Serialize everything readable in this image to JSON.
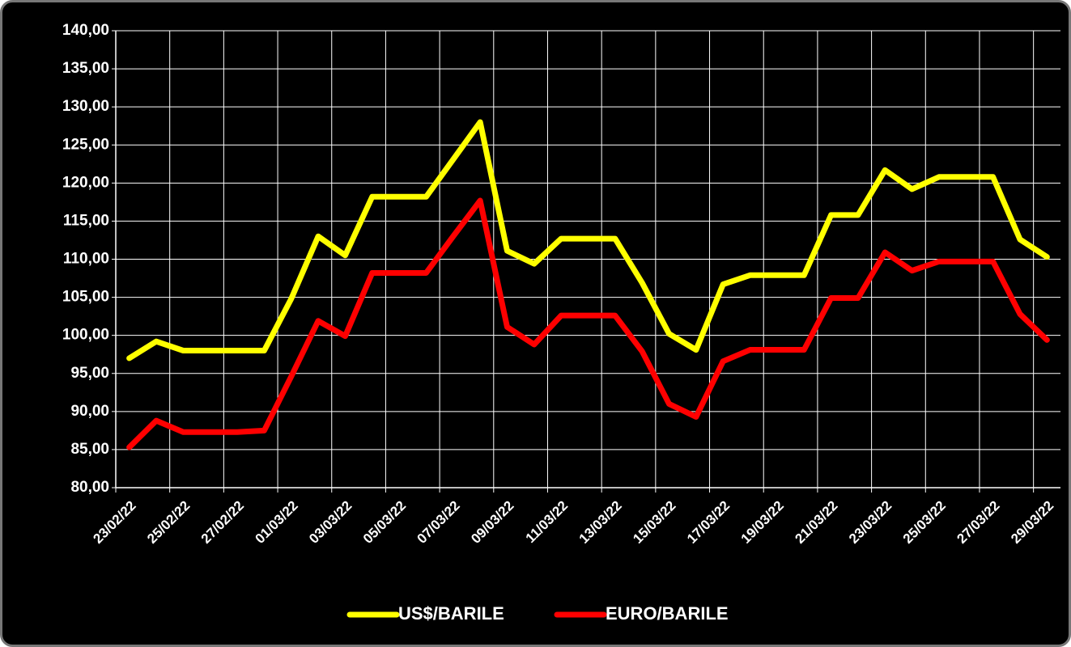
{
  "chart_data": {
    "type": "line",
    "categories": [
      "23/02/22",
      null,
      "25/02/22",
      null,
      "27/02/22",
      null,
      "01/03/22",
      null,
      "03/03/22",
      null,
      "05/03/22",
      null,
      "07/03/22",
      null,
      "09/03/22",
      null,
      "11/03/22",
      null,
      "13/03/22",
      null,
      "15/03/22",
      null,
      "17/03/22",
      null,
      "19/03/22",
      null,
      "21/03/22",
      null,
      "23/03/22",
      null,
      "25/03/22",
      null,
      "27/03/22",
      null,
      "29/03/22"
    ],
    "series": [
      {
        "name": "US$/BARILE",
        "color": "#ffff00",
        "values": [
          97.0,
          99.2,
          98.0,
          98.0,
          98.0,
          98.0,
          104.8,
          113.0,
          110.5,
          118.2,
          118.2,
          118.2,
          123.1,
          128.0,
          111.1,
          109.4,
          112.7,
          112.7,
          112.7,
          106.9,
          100.2,
          98.1,
          106.7,
          107.9,
          107.9,
          107.9,
          115.8,
          115.8,
          121.7,
          119.2,
          120.8,
          120.8,
          120.8,
          112.6,
          110.3
        ]
      },
      {
        "name": "EURO/BARILE",
        "color": "#ff0000",
        "values": [
          85.3,
          88.8,
          87.3,
          87.3,
          87.3,
          87.5,
          94.6,
          101.9,
          99.9,
          108.2,
          108.2,
          108.2,
          113.0,
          117.7,
          101.1,
          98.8,
          102.6,
          102.6,
          102.6,
          97.9,
          91.0,
          89.3,
          96.6,
          98.1,
          98.1,
          98.1,
          104.9,
          104.9,
          110.9,
          108.5,
          109.7,
          109.7,
          109.7,
          102.8,
          99.4
        ]
      }
    ],
    "ylim": [
      80,
      140
    ],
    "yticks": [
      {
        "value": 80,
        "label": "80,00"
      },
      {
        "value": 85,
        "label": "85,00"
      },
      {
        "value": 90,
        "label": "90,00"
      },
      {
        "value": 95,
        "label": "95,00"
      },
      {
        "value": 100,
        "label": "100,00"
      },
      {
        "value": 105,
        "label": "105,00"
      },
      {
        "value": 110,
        "label": "110,00"
      },
      {
        "value": 115,
        "label": "115,00"
      },
      {
        "value": 120,
        "label": "120,00"
      },
      {
        "value": 125,
        "label": "125,00"
      },
      {
        "value": 130,
        "label": "130,00"
      },
      {
        "value": 135,
        "label": "135,00"
      },
      {
        "value": 140,
        "label": "140,00"
      }
    ],
    "grid": true,
    "legend": "bottom"
  }
}
